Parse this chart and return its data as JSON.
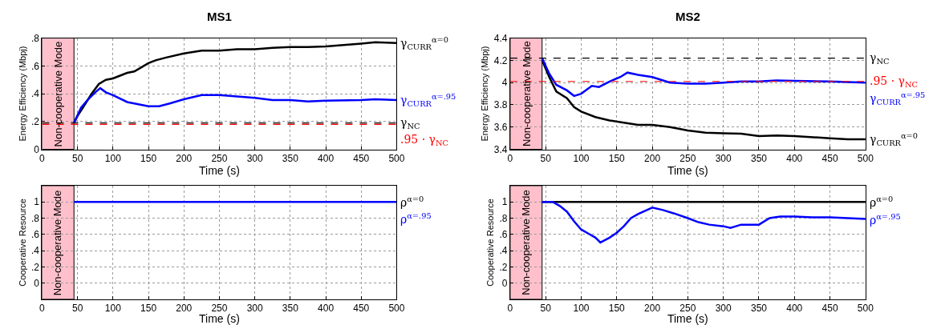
{
  "chart_data": [
    {
      "type": "line",
      "title": "MS1",
      "xlabel": "Time (s)",
      "ylabel": "Energy Efficiency (Mbpj)",
      "xlim": [
        0,
        500
      ],
      "xticks": [
        0,
        50,
        100,
        150,
        200,
        250,
        300,
        350,
        400,
        450,
        500
      ],
      "ylim": [
        0,
        0.8
      ],
      "yticks": [
        0,
        {
          "value": 0.2,
          "label": ".2"
        },
        {
          "value": 0.4,
          "label": ".4"
        },
        {
          "value": 0.6,
          "label": ".6"
        },
        {
          "value": 0.8,
          "label": ".8"
        }
      ],
      "grid": true,
      "line_style": "solid",
      "x": [
        45,
        50,
        60,
        70,
        80,
        90,
        100,
        110,
        120,
        130,
        140,
        150,
        160,
        175,
        200,
        225,
        250,
        275,
        300,
        325,
        350,
        375,
        400,
        425,
        450,
        470,
        500
      ],
      "series": [
        {
          "name": "γ$_{CURR}$$^{α=0}$",
          "color": "#000000",
          "values": [
            0.19,
            0.24,
            0.32,
            0.4,
            0.47,
            0.5,
            0.51,
            0.53,
            0.55,
            0.56,
            0.59,
            0.62,
            0.64,
            0.66,
            0.69,
            0.71,
            0.71,
            0.72,
            0.72,
            0.73,
            0.735,
            0.735,
            0.74,
            0.75,
            0.76,
            0.77,
            0.765
          ]
        },
        {
          "name": "γ$_{CURR}$$^{α=.95}$",
          "color": "#0000ff",
          "x": [
            45,
            55,
            65,
            75,
            82,
            90,
            100,
            120,
            140,
            150,
            165,
            180,
            200,
            225,
            250,
            275,
            300,
            325,
            350,
            375,
            400,
            450,
            470,
            500
          ],
          "values": [
            0.19,
            0.3,
            0.36,
            0.41,
            0.44,
            0.41,
            0.39,
            0.34,
            0.32,
            0.31,
            0.31,
            0.33,
            0.36,
            0.39,
            0.39,
            0.38,
            0.37,
            0.355,
            0.355,
            0.345,
            0.35,
            0.355,
            0.36,
            0.355
          ]
        }
      ],
      "ref_lines": [
        {
          "axis": "y",
          "value": 0.19,
          "label": "γ$_{NC}$",
          "color": "#000000",
          "line_style": "dashed"
        },
        {
          "axis": "y",
          "value": 0.18,
          "label": ".95 · γ$_{NC}$",
          "color": "#ff0000",
          "line_style": "dashed"
        }
      ],
      "bands": [
        {
          "axis": "x",
          "from": 0,
          "to": 45,
          "label": "Non-cooperative Mode",
          "color": "#ffc0cb"
        }
      ]
    },
    {
      "type": "line",
      "title": "MS2",
      "xlabel": "Time (s)",
      "ylabel": "Energy Efficiency (Mbpj)",
      "xlim": [
        0,
        500
      ],
      "xticks": [
        0,
        50,
        100,
        150,
        200,
        250,
        300,
        350,
        400,
        450,
        500
      ],
      "ylim": [
        3.4,
        4.4
      ],
      "yticks": [
        3.4,
        3.6,
        3.8,
        4,
        4.2,
        4.4
      ],
      "grid": true,
      "line_style": "solid",
      "series": [
        {
          "name": "γ$_{CURR}$$^{α=0}$",
          "color": "#000000",
          "x": [
            45,
            55,
            65,
            80,
            90,
            100,
            120,
            140,
            160,
            180,
            200,
            225,
            250,
            275,
            300,
            325,
            350,
            375,
            400,
            450,
            475,
            500
          ],
          "values": [
            4.2,
            4.05,
            3.92,
            3.86,
            3.78,
            3.74,
            3.69,
            3.66,
            3.64,
            3.62,
            3.62,
            3.6,
            3.57,
            3.55,
            3.545,
            3.54,
            3.52,
            3.525,
            3.52,
            3.5,
            3.49,
            3.49
          ]
        },
        {
          "name": "γ$_{CURR}$$^{α=.95}$",
          "color": "#0000ff",
          "x": [
            45,
            55,
            65,
            80,
            90,
            100,
            115,
            125,
            140,
            155,
            165,
            180,
            200,
            225,
            250,
            275,
            300,
            325,
            350,
            375,
            400,
            450,
            500
          ],
          "values": [
            4.22,
            4.08,
            3.98,
            3.93,
            3.88,
            3.9,
            3.97,
            3.96,
            4.01,
            4.05,
            4.09,
            4.07,
            4.05,
            4.0,
            3.99,
            3.99,
            4.0,
            4.01,
            4.01,
            4.02,
            4.015,
            4.01,
            4.0
          ]
        }
      ],
      "ref_lines": [
        {
          "axis": "y",
          "value": 4.22,
          "label": "γ$_{NC}$",
          "color": "#000000",
          "line_style": "dashed"
        },
        {
          "axis": "y",
          "value": 4.01,
          "label": ".95 · γ$_{NC}$",
          "color": "#ff0000",
          "line_style": "dashed"
        }
      ],
      "bands": [
        {
          "axis": "x",
          "from": 0,
          "to": 45,
          "label": "Non-cooperative Mode",
          "color": "#ffc0cb"
        }
      ]
    },
    {
      "type": "line",
      "xlabel": "Time (s)",
      "ylabel": "Cooperative Resource",
      "xlim": [
        0,
        500
      ],
      "xticks": [
        0,
        50,
        100,
        150,
        200,
        250,
        300,
        350,
        400,
        450,
        500
      ],
      "ylim": [
        -0.2,
        1.2
      ],
      "yticks": [
        0,
        {
          "value": 0.2,
          "label": ".2"
        },
        {
          "value": 0.4,
          "label": ".4"
        },
        {
          "value": 0.6,
          "label": ".6"
        },
        {
          "value": 0.8,
          "label": ".8"
        },
        1
      ],
      "grid": true,
      "line_style": "solid",
      "x": [
        45,
        500
      ],
      "series": [
        {
          "name": "ρ$^{α=0}$",
          "color": "#000000",
          "values": [
            null,
            null
          ]
        },
        {
          "name": "ρ$^{α=.95}$",
          "color": "#0000ff",
          "values": [
            1,
            1
          ]
        }
      ],
      "bands": [
        {
          "axis": "x",
          "from": 0,
          "to": 45,
          "label": "Non-cooperative Mode",
          "color": "#ffc0cb"
        }
      ]
    },
    {
      "type": "line",
      "xlabel": "Time (s)",
      "ylabel": "Cooperative Resource",
      "xlim": [
        0,
        500
      ],
      "xticks": [
        0,
        50,
        100,
        150,
        200,
        250,
        300,
        350,
        400,
        450,
        500
      ],
      "ylim": [
        -0.2,
        1.2
      ],
      "yticks": [
        0,
        {
          "value": 0.2,
          "label": ".2"
        },
        {
          "value": 0.4,
          "label": ".4"
        },
        {
          "value": 0.6,
          "label": ".6"
        },
        {
          "value": 0.8,
          "label": ".8"
        },
        1
      ],
      "grid": true,
      "line_style": "solid",
      "series": [
        {
          "name": "ρ$^{α=0}$",
          "color": "#000000",
          "x": [
            45,
            500
          ],
          "values": [
            1,
            1
          ]
        },
        {
          "name": "ρ$^{α=.95}$",
          "color": "#0000ff",
          "x": [
            45,
            60,
            70,
            80,
            90,
            100,
            110,
            120,
            127,
            140,
            150,
            160,
            170,
            180,
            200,
            215,
            230,
            250,
            265,
            280,
            300,
            310,
            325,
            350,
            365,
            380,
            400,
            425,
            450,
            475,
            500
          ],
          "values": [
            1,
            1,
            0.95,
            0.88,
            0.76,
            0.66,
            0.61,
            0.56,
            0.5,
            0.56,
            0.62,
            0.7,
            0.8,
            0.85,
            0.93,
            0.9,
            0.86,
            0.8,
            0.75,
            0.72,
            0.7,
            0.68,
            0.72,
            0.72,
            0.8,
            0.82,
            0.82,
            0.81,
            0.81,
            0.8,
            0.79
          ]
        }
      ],
      "bands": [
        {
          "axis": "x",
          "from": 0,
          "to": 45,
          "label": "Non-cooperative Mode",
          "color": "#ffc0cb"
        }
      ]
    }
  ]
}
